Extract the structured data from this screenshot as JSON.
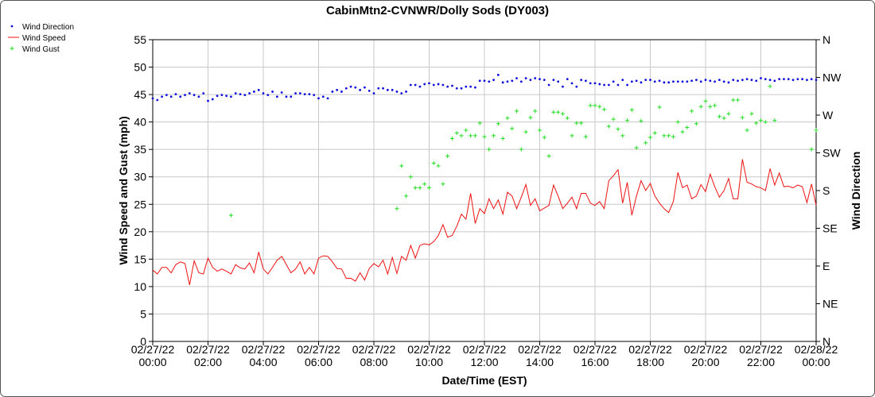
{
  "chart_data": {
    "type": "scatter-line",
    "title": "CabinMtn2-CVNWR/Dolly Sods (DY003)",
    "x_label": "Date/Time (EST)",
    "y_label": "Wind Speed and Gust (mph)",
    "y2_label": "Wind Direction",
    "x": [
      0,
      10,
      20,
      30,
      40,
      50,
      60,
      70,
      80,
      90,
      100,
      110,
      120,
      130,
      140,
      150,
      160,
      170,
      180,
      190,
      200,
      210,
      220,
      230,
      240,
      250,
      260,
      270,
      280,
      290,
      300,
      310,
      320,
      330,
      340,
      350,
      360,
      370,
      380,
      390,
      400,
      410,
      420,
      430,
      440,
      450,
      460,
      470,
      480,
      490,
      500,
      510,
      520,
      530,
      540,
      550,
      560,
      570,
      580,
      590,
      600,
      610,
      620,
      630,
      640,
      650,
      660,
      670,
      680,
      690,
      700,
      710,
      720,
      730,
      740,
      750,
      760,
      770,
      780,
      790,
      800,
      810,
      820,
      830,
      840,
      850,
      860,
      870,
      880,
      890,
      900,
      910,
      920,
      930,
      940,
      950,
      960,
      970,
      980,
      990,
      1000,
      1010,
      1020,
      1030,
      1040,
      1050,
      1060,
      1070,
      1080,
      1090,
      1100,
      1110,
      1120,
      1130,
      1140,
      1150,
      1160,
      1170,
      1180,
      1190,
      1200,
      1210,
      1220,
      1230,
      1240,
      1250,
      1260,
      1270,
      1280,
      1290,
      1300,
      1310,
      1320,
      1330,
      1340,
      1350,
      1360,
      1370,
      1380,
      1390,
      1400,
      1410,
      1420,
      1430,
      1440
    ],
    "xlim": [
      0,
      1440
    ],
    "xticks": [
      {
        "value": 0,
        "label": "02/27/22\n00:00"
      },
      {
        "value": 120,
        "label": "02/27/22\n02:00"
      },
      {
        "value": 240,
        "label": "02/27/22\n04:00"
      },
      {
        "value": 360,
        "label": "02/27/22\n06:00"
      },
      {
        "value": 480,
        "label": "02/27/22\n08:00"
      },
      {
        "value": 600,
        "label": "02/27/22\n10:00"
      },
      {
        "value": 720,
        "label": "02/27/22\n12:00"
      },
      {
        "value": 840,
        "label": "02/27/22\n14:00"
      },
      {
        "value": 960,
        "label": "02/27/22\n16:00"
      },
      {
        "value": 1080,
        "label": "02/27/22\n18:00"
      },
      {
        "value": 1200,
        "label": "02/27/22\n20:00"
      },
      {
        "value": 1320,
        "label": "02/27/22\n22:00"
      },
      {
        "value": 1440,
        "label": "02/28/22\n00:00"
      }
    ],
    "ylim": [
      0,
      55
    ],
    "yticks": [
      0,
      5,
      10,
      15,
      20,
      25,
      30,
      35,
      40,
      45,
      50,
      55
    ],
    "y2lim": [
      0,
      360
    ],
    "y2ticks": [
      {
        "value": 0,
        "label": "N"
      },
      {
        "value": 45,
        "label": "NE"
      },
      {
        "value": 90,
        "label": "E"
      },
      {
        "value": 135,
        "label": "SE"
      },
      {
        "value": 180,
        "label": "S"
      },
      {
        "value": 225,
        "label": "SW"
      },
      {
        "value": 270,
        "label": "W"
      },
      {
        "value": 315,
        "label": "NW"
      },
      {
        "value": 360,
        "label": "N"
      }
    ],
    "grid": true,
    "legend": "top-left",
    "series": [
      {
        "name": "Wind Speed",
        "color": "#ee1111",
        "marker": "line",
        "values": [
          13,
          12.3,
          13.5,
          13.5,
          12.5,
          14,
          14.5,
          14.2,
          10.3,
          14.7,
          12.5,
          12.3,
          15.2,
          13.5,
          12.8,
          13.2,
          12.8,
          12.3,
          14,
          13.4,
          13.2,
          14.3,
          12.5,
          16.3,
          13.2,
          12.3,
          13.5,
          14.8,
          15.5,
          14,
          12.5,
          13.2,
          14.5,
          12.3,
          13.5,
          12.3,
          15.2,
          15.6,
          15.5,
          14.5,
          13.3,
          13.2,
          11.5,
          11.5,
          11,
          12.5,
          11.2,
          13.3,
          14.2,
          13.6,
          14.8,
          12.3,
          15.3,
          12.4,
          15.5,
          14.8,
          17.5,
          15.2,
          17.5,
          17.8,
          17.6,
          18.2,
          19.3,
          21.3,
          19,
          19.3,
          21,
          23.2,
          22.3,
          27,
          21.5,
          24.2,
          23.3,
          26,
          24.2,
          25.8,
          23.2,
          27.2,
          26.5,
          24.2,
          26.3,
          28.6,
          24.8,
          26,
          23.8,
          24.3,
          24.8,
          28.5,
          26.5,
          24.2,
          25.2,
          26.3,
          24.2,
          27,
          27,
          25.2,
          24.8,
          25.5,
          24.2,
          29.3,
          30.2,
          31.3,
          25.2,
          29,
          23,
          26.5,
          29.3,
          27.5,
          28.8,
          26.5,
          25.2,
          24.2,
          23.5,
          25.5,
          30.8,
          28,
          28.5,
          26,
          26.5,
          28.6,
          27.3,
          30.5,
          28.2,
          26.3,
          27.5,
          29.7,
          26,
          26,
          33.2,
          29,
          28.7,
          28.2,
          28,
          27.5,
          31.5,
          28.5,
          30.7,
          28.2,
          28.3,
          28,
          28.5,
          28.2,
          25.3,
          28.7,
          24.8
        ]
      },
      {
        "name": "Wind Gust",
        "color": "#22dd22",
        "marker": "plus",
        "values": [
          null,
          null,
          null,
          null,
          null,
          null,
          null,
          null,
          null,
          null,
          null,
          null,
          null,
          null,
          null,
          null,
          null,
          23,
          null,
          null,
          null,
          null,
          null,
          null,
          null,
          null,
          null,
          null,
          null,
          null,
          null,
          null,
          null,
          null,
          null,
          null,
          null,
          null,
          null,
          null,
          null,
          null,
          null,
          null,
          null,
          null,
          null,
          null,
          null,
          null,
          null,
          null,
          null,
          24.2,
          32,
          26.5,
          30,
          28,
          28,
          28.7,
          28,
          32.5,
          32,
          28.7,
          33.8,
          37,
          38,
          37.5,
          38.5,
          37.5,
          37.5,
          39.8,
          37.3,
          35,
          37.5,
          39.7,
          37,
          40.7,
          38.8,
          42,
          35,
          38.2,
          40.8,
          42,
          38.5,
          37.2,
          33.8,
          41.8,
          41.8,
          41.5,
          40.7,
          37.5,
          39.8,
          39.8,
          37.3,
          43,
          43,
          42.8,
          42.3,
          39.2,
          40.5,
          38.7,
          37.5,
          40.3,
          42.2,
          35.3,
          40.2,
          36.2,
          37.2,
          38,
          42.7,
          37.5,
          37.5,
          37.3,
          40,
          38.2,
          39,
          42,
          39.7,
          42.8,
          43.8,
          42.8,
          43,
          41,
          40.7,
          41.5,
          44,
          44,
          40.8,
          38.5,
          41.5,
          39.8,
          40.3,
          40,
          46.5,
          40.3,
          null,
          null,
          null,
          null,
          null,
          null,
          null,
          35,
          38.5
        ]
      },
      {
        "name": "Wind Direction",
        "color": "#1111dd",
        "marker": "dot",
        "axis": "y2",
        "values": [
          290,
          288,
          292,
          294,
          292,
          295,
          292,
          294,
          296,
          294,
          292,
          296,
          287,
          289,
          293,
          294,
          293,
          292,
          296,
          295,
          294,
          296,
          298,
          300,
          296,
          294,
          298,
          292,
          297,
          292,
          292,
          296,
          296,
          295,
          295,
          294,
          290,
          292,
          290,
          298,
          300,
          298,
          302,
          304,
          303,
          300,
          303,
          299,
          296,
          302,
          302,
          300,
          300,
          298,
          296,
          298,
          306,
          306,
          304,
          307,
          308,
          306,
          307,
          306,
          304,
          305,
          302,
          302,
          304,
          304,
          303,
          311,
          311,
          310,
          312,
          318,
          309,
          310,
          311,
          314,
          310,
          314,
          312,
          314,
          313,
          312,
          306,
          312,
          310,
          304,
          313,
          308,
          304,
          312,
          311,
          308,
          308,
          307,
          306,
          306,
          310,
          306,
          312,
          306,
          310,
          311,
          309,
          312,
          312,
          310,
          311,
          309,
          309,
          310,
          310,
          310,
          310,
          311,
          312,
          310,
          312,
          311,
          310,
          312,
          310,
          309,
          312,
          311,
          312,
          313,
          312,
          311,
          314,
          313,
          312,
          311,
          313,
          313,
          313,
          312,
          313,
          313,
          312,
          313,
          312
        ]
      }
    ]
  }
}
